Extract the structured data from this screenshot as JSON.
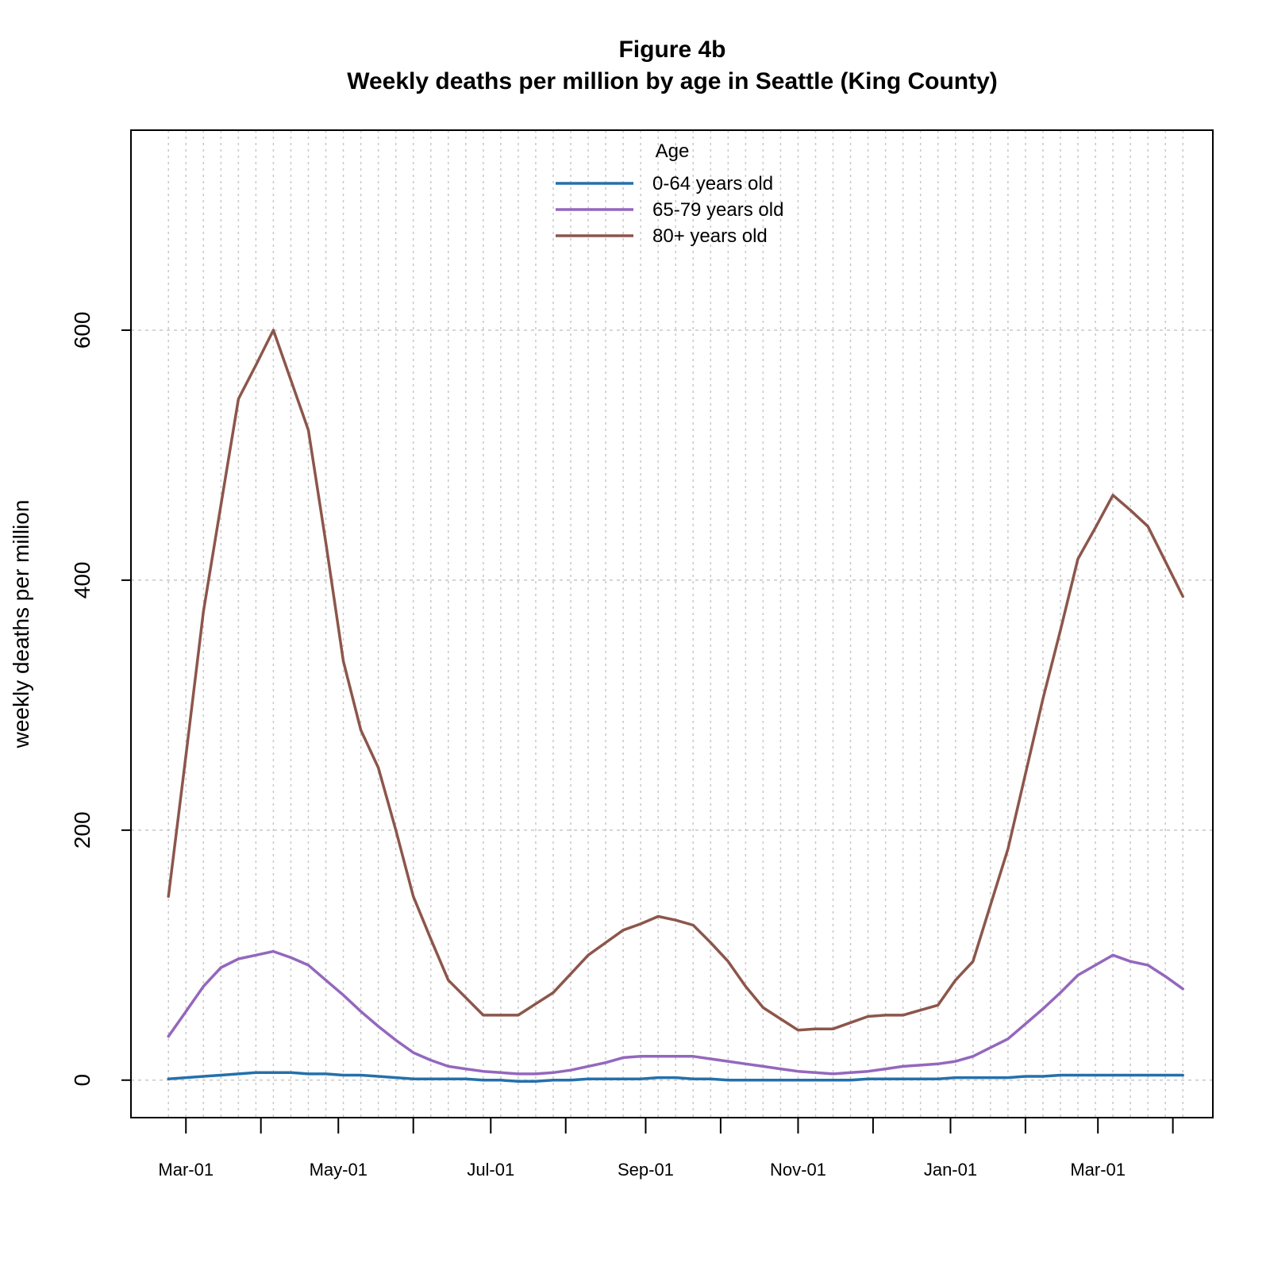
{
  "chart_data": {
    "type": "line",
    "title": "Figure 4b",
    "subtitle": "Weekly deaths per million by age in Seattle (King County)",
    "xlabel": "",
    "ylabel": "weekly deaths per million",
    "ylim": [
      -30,
      760
    ],
    "xlim": [
      "2020-02-08",
      "2021-04-16"
    ],
    "grid": true,
    "legend": {
      "title": "Age",
      "placement": "top-center"
    },
    "y_ticks": [
      0,
      200,
      400,
      600
    ],
    "x_tick_labels": [
      {
        "date": "2020-03-01",
        "label": "Mar-01"
      },
      {
        "date": "2020-05-01",
        "label": "May-01"
      },
      {
        "date": "2020-07-01",
        "label": "Jul-01"
      },
      {
        "date": "2020-09-01",
        "label": "Sep-01"
      },
      {
        "date": "2020-11-01",
        "label": "Nov-01"
      },
      {
        "date": "2021-01-01",
        "label": "Jan-01"
      },
      {
        "date": "2021-03-01",
        "label": "Mar-01"
      }
    ],
    "x_minor_ticks": [
      "2020-03-31",
      "2020-05-31",
      "2020-07-31",
      "2020-10-01",
      "2020-12-01",
      "2021-01-31",
      "2021-03-31"
    ],
    "x": [
      "2020-02-23",
      "2020-03-01",
      "2020-03-08",
      "2020-03-15",
      "2020-03-22",
      "2020-03-29",
      "2020-04-05",
      "2020-04-12",
      "2020-04-19",
      "2020-04-26",
      "2020-05-03",
      "2020-05-10",
      "2020-05-17",
      "2020-05-24",
      "2020-05-31",
      "2020-06-07",
      "2020-06-14",
      "2020-06-21",
      "2020-06-28",
      "2020-07-05",
      "2020-07-12",
      "2020-07-19",
      "2020-07-26",
      "2020-08-02",
      "2020-08-09",
      "2020-08-16",
      "2020-08-23",
      "2020-08-30",
      "2020-09-06",
      "2020-09-13",
      "2020-09-20",
      "2020-09-27",
      "2020-10-04",
      "2020-10-11",
      "2020-10-18",
      "2020-10-25",
      "2020-11-01",
      "2020-11-08",
      "2020-11-15",
      "2020-11-22",
      "2020-11-29",
      "2020-12-06",
      "2020-12-13",
      "2020-12-20",
      "2020-12-27",
      "2021-01-03",
      "2021-01-10",
      "2021-01-17",
      "2021-01-24",
      "2021-01-31",
      "2021-02-07",
      "2021-02-14",
      "2021-02-21",
      "2021-02-28",
      "2021-03-07",
      "2021-03-14",
      "2021-03-21",
      "2021-03-28",
      "2021-04-04"
    ],
    "series": [
      {
        "name": "0-64 years old",
        "color": "#2470ab",
        "values": [
          1,
          2,
          3,
          4,
          5,
          6,
          6,
          6,
          5,
          5,
          4,
          4,
          3,
          2,
          1,
          1,
          1,
          1,
          0,
          0,
          -1,
          -1,
          0,
          0,
          1,
          1,
          1,
          1,
          2,
          2,
          1,
          1,
          0,
          0,
          0,
          0,
          0,
          0,
          0,
          0,
          1,
          1,
          1,
          1,
          1,
          2,
          2,
          2,
          2,
          3,
          3,
          4,
          4,
          4,
          4,
          4,
          4,
          4,
          4
        ]
      },
      {
        "name": "65-79 years old",
        "color": "#9467bd",
        "values": [
          35,
          55,
          75,
          90,
          97,
          100,
          103,
          98,
          92,
          80,
          68,
          55,
          43,
          32,
          22,
          16,
          11,
          9,
          7,
          6,
          5,
          5,
          6,
          8,
          11,
          14,
          18,
          19,
          19,
          19,
          19,
          17,
          15,
          13,
          11,
          9,
          7,
          6,
          5,
          6,
          7,
          9,
          11,
          12,
          13,
          15,
          19,
          26,
          33,
          45,
          57,
          70,
          84,
          92,
          100,
          95,
          92,
          83,
          73
        ]
      },
      {
        "name": "80+ years old",
        "color": "#8c564b",
        "values": [
          147,
          260,
          375,
          460,
          545,
          572,
          600,
          560,
          520,
          430,
          335,
          280,
          250,
          200,
          147,
          113,
          80,
          66,
          52,
          52,
          52,
          61,
          70,
          85,
          100,
          110,
          120,
          125,
          131,
          128,
          124,
          110,
          95,
          75,
          58,
          49,
          40,
          41,
          41,
          46,
          51,
          52,
          52,
          56,
          60,
          80,
          95,
          140,
          185,
          245,
          305,
          360,
          417,
          442,
          468,
          456,
          443,
          415,
          387
        ]
      }
    ]
  }
}
